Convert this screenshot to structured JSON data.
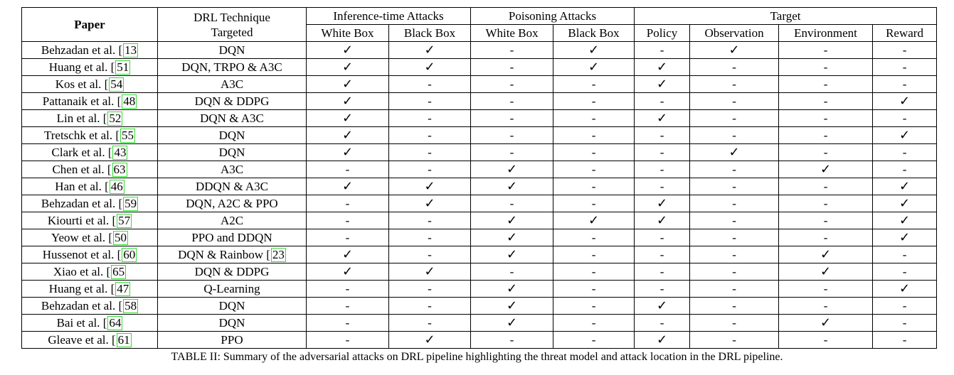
{
  "table": {
    "headers": {
      "paper": "Paper",
      "technique_line1": "DRL Technique",
      "technique_line2": "Targeted",
      "group_inference": "Inference-time Attacks",
      "group_poisoning": "Poisoning Attacks",
      "group_target": "Target",
      "sub": [
        "White Box",
        "Black Box",
        "White Box",
        "Black Box",
        "Policy",
        "Observation",
        "Environment",
        "Reward"
      ]
    },
    "rows": [
      {
        "author": "Behzadan et al. [",
        "ref": "13",
        "technique": "DQN",
        "technique_ref": "",
        "cells": [
          "✓",
          "✓",
          "-",
          "✓",
          "-",
          "✓",
          "-",
          "-"
        ]
      },
      {
        "author": "Huang et al. [",
        "ref": "51",
        "technique": "DQN, TRPO & A3C",
        "technique_ref": "",
        "cells": [
          "✓",
          "✓",
          "-",
          "✓",
          "✓",
          "-",
          "-",
          "-"
        ]
      },
      {
        "author": "Kos et al. [",
        "ref": "54",
        "technique": "A3C",
        "technique_ref": "",
        "cells": [
          "✓",
          "-",
          "-",
          "-",
          "✓",
          "-",
          "-",
          "-"
        ]
      },
      {
        "author": "Pattanaik et al. [",
        "ref": "48",
        "technique": "DQN & DDPG",
        "technique_ref": "",
        "cells": [
          "✓",
          "-",
          "-",
          "-",
          "-",
          "-",
          "-",
          "✓"
        ]
      },
      {
        "author": "Lin et al. [",
        "ref": "52",
        "technique": "DQN & A3C",
        "technique_ref": "",
        "cells": [
          "✓",
          "-",
          "-",
          "-",
          "✓",
          "-",
          "-",
          "-"
        ]
      },
      {
        "author": "Tretschk et al. [",
        "ref": "55",
        "technique": "DQN",
        "technique_ref": "",
        "cells": [
          "✓",
          "-",
          "-",
          "-",
          "-",
          "-",
          "-",
          "✓"
        ]
      },
      {
        "author": "Clark et al. [",
        "ref": "43",
        "technique": "DQN",
        "technique_ref": "",
        "cells": [
          "✓",
          "-",
          "-",
          "-",
          "-",
          "✓",
          "-",
          "-"
        ]
      },
      {
        "author": "Chen et al. [",
        "ref": "63",
        "technique": "A3C",
        "technique_ref": "",
        "cells": [
          "-",
          "-",
          "✓",
          "-",
          "-",
          "-",
          "✓",
          "-"
        ]
      },
      {
        "author": "Han et al. [",
        "ref": "46",
        "technique": "DDQN & A3C",
        "technique_ref": "",
        "cells": [
          "✓",
          "✓",
          "✓",
          "-",
          "-",
          "-",
          "-",
          "✓"
        ]
      },
      {
        "author": "Behzadan et al. [",
        "ref": "59",
        "technique": "DQN, A2C & PPO",
        "technique_ref": "",
        "cells": [
          "-",
          "✓",
          "-",
          "-",
          "✓",
          "-",
          "-",
          "✓"
        ]
      },
      {
        "author": "Kiourti et al. [",
        "ref": "57",
        "technique": "A2C",
        "technique_ref": "",
        "cells": [
          "-",
          "-",
          "✓",
          "✓",
          "✓",
          "-",
          "-",
          "✓"
        ]
      },
      {
        "author": "Yeow et al. [",
        "ref": "50",
        "technique": "PPO and DDQN",
        "technique_ref": "",
        "cells": [
          "-",
          "-",
          "✓",
          "-",
          "-",
          "-",
          "-",
          "✓"
        ]
      },
      {
        "author": "Hussenot et al. [",
        "ref": "60",
        "technique": "DQN & Rainbow [",
        "technique_ref": "23",
        "cells": [
          "✓",
          "-",
          "✓",
          "-",
          "-",
          "-",
          "✓",
          "-"
        ]
      },
      {
        "author": "Xiao et al. [",
        "ref": "65",
        "technique": "DQN & DDPG",
        "technique_ref": "",
        "cells": [
          "✓",
          "✓",
          "-",
          "-",
          "-",
          "-",
          "✓",
          "-"
        ]
      },
      {
        "author": "Huang et al. [",
        "ref": "47",
        "technique": "Q-Learning",
        "technique_ref": "",
        "cells": [
          "-",
          "-",
          "✓",
          "-",
          "-",
          "-",
          "-",
          "✓"
        ]
      },
      {
        "author": "Behzadan et al. [",
        "ref": "58",
        "technique": "DQN",
        "technique_ref": "",
        "cells": [
          "-",
          "-",
          "✓",
          "-",
          "✓",
          "-",
          "-",
          "-"
        ]
      },
      {
        "author": "Bai et al. [",
        "ref": "64",
        "technique": "DQN",
        "technique_ref": "",
        "cells": [
          "-",
          "-",
          "✓",
          "-",
          "-",
          "-",
          "✓",
          "-"
        ]
      },
      {
        "author": "Gleave et al. [",
        "ref": "61",
        "technique": "PPO",
        "technique_ref": "",
        "cells": [
          "-",
          "✓",
          "-",
          "-",
          "✓",
          "-",
          "-",
          "-"
        ]
      }
    ]
  },
  "caption": "TABLE II: Summary of the adversarial attacks on DRL pipeline highlighting the threat model and attack location in the DRL pipeline."
}
